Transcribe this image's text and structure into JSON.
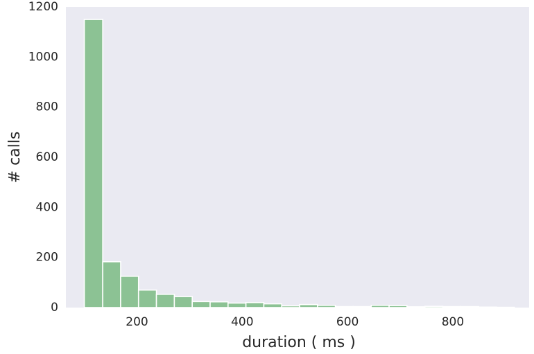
{
  "chart_data": {
    "type": "bar",
    "title": "",
    "xlabel": "duration ( ms )",
    "ylabel": "# calls",
    "xlim": [
      65,
      945
    ],
    "ylim": [
      0,
      1200
    ],
    "xticks": [
      200,
      400,
      600,
      800
    ],
    "yticks": [
      0,
      200,
      400,
      600,
      800,
      1000,
      1200
    ],
    "grid": false,
    "background_color": "#eaeaf2",
    "bar_color": "#8cc294",
    "bar_edge_color": "#ffffff",
    "bins": [
      {
        "x0": 100,
        "x1": 135,
        "count": 1150
      },
      {
        "x0": 135,
        "x1": 169,
        "count": 183
      },
      {
        "x0": 169,
        "x1": 203,
        "count": 125
      },
      {
        "x0": 203,
        "x1": 237,
        "count": 70
      },
      {
        "x0": 237,
        "x1": 271,
        "count": 53
      },
      {
        "x0": 271,
        "x1": 305,
        "count": 44
      },
      {
        "x0": 305,
        "x1": 339,
        "count": 24
      },
      {
        "x0": 339,
        "x1": 373,
        "count": 23
      },
      {
        "x0": 373,
        "x1": 407,
        "count": 18
      },
      {
        "x0": 407,
        "x1": 441,
        "count": 20
      },
      {
        "x0": 441,
        "x1": 475,
        "count": 15
      },
      {
        "x0": 475,
        "x1": 509,
        "count": 7
      },
      {
        "x0": 509,
        "x1": 543,
        "count": 12
      },
      {
        "x0": 543,
        "x1": 577,
        "count": 9
      },
      {
        "x0": 577,
        "x1": 611,
        "count": 4
      },
      {
        "x0": 611,
        "x1": 645,
        "count": 4
      },
      {
        "x0": 645,
        "x1": 679,
        "count": 9
      },
      {
        "x0": 679,
        "x1": 713,
        "count": 8
      },
      {
        "x0": 713,
        "x1": 747,
        "count": 3
      },
      {
        "x0": 747,
        "x1": 781,
        "count": 5
      },
      {
        "x0": 781,
        "x1": 815,
        "count": 4
      },
      {
        "x0": 815,
        "x1": 849,
        "count": 4
      },
      {
        "x0": 849,
        "x1": 883,
        "count": 2
      },
      {
        "x0": 883,
        "x1": 917,
        "count": 1
      }
    ]
  }
}
